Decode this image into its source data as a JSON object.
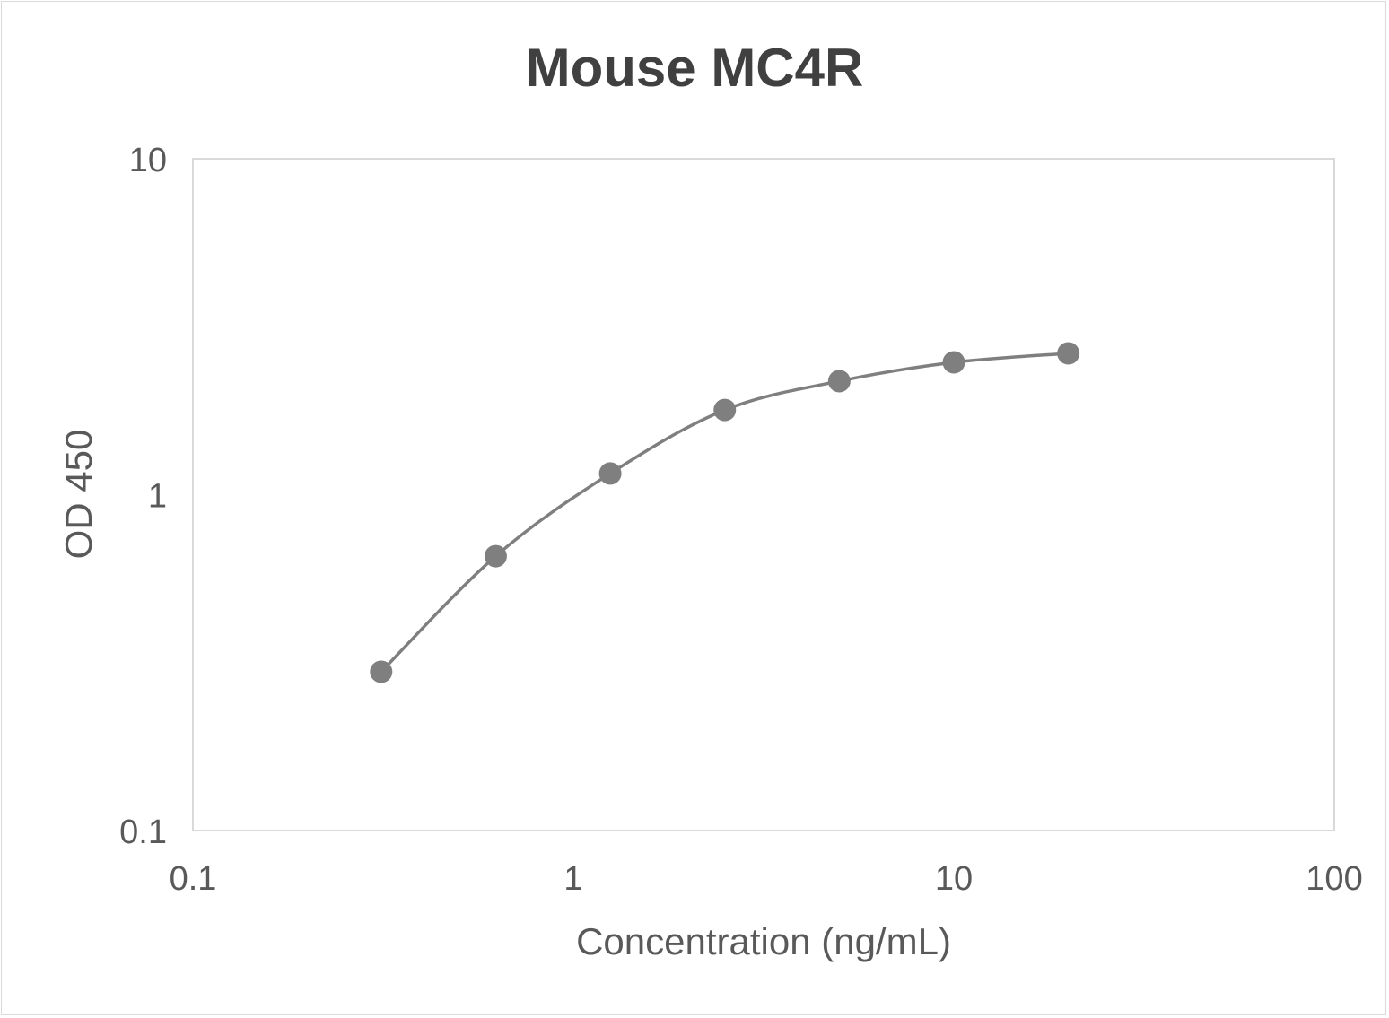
{
  "chart_data": {
    "type": "scatter",
    "title": "Mouse MC4R",
    "xlabel": "Concentration (ng/mL)",
    "ylabel": "OD 450",
    "xscale": "log",
    "yscale": "log",
    "xlim": [
      0.1,
      100
    ],
    "ylim": [
      0.1,
      10
    ],
    "xticks": [
      "0.1",
      "1",
      "10",
      "100"
    ],
    "yticks": [
      "0.1",
      "1",
      "10"
    ],
    "grid": false,
    "legend": "none",
    "line": "smooth",
    "color": "#7f7f7f",
    "x": [
      0.3125,
      0.625,
      1.25,
      2.5,
      5,
      10,
      20
    ],
    "y": [
      0.297,
      0.656,
      1.156,
      1.787,
      2.177,
      2.477,
      2.634
    ]
  }
}
